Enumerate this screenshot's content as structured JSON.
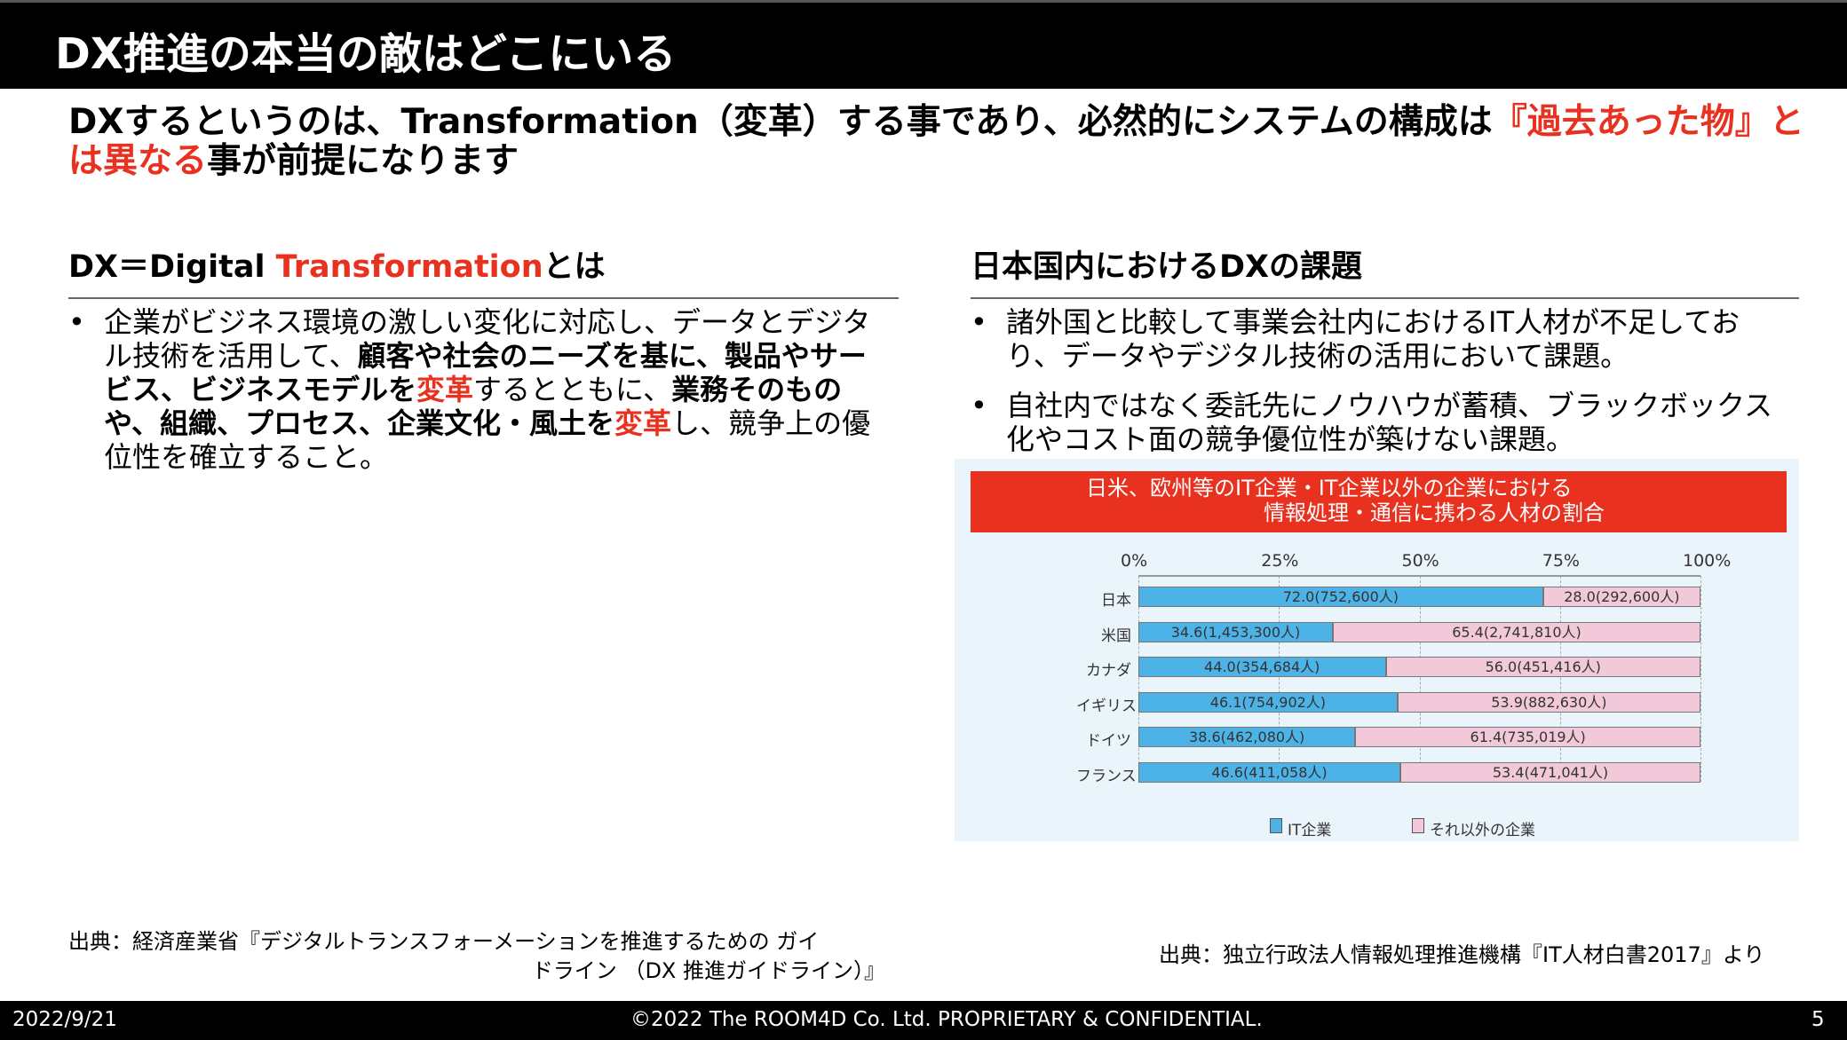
{
  "title": "DX推進の本当の敵はどこにいる",
  "headline": {
    "part1": "DXするというのは、Transformation（変革）する事であり、必然的にシステムの構成は",
    "red": "『過去あった物』とは異なる",
    "part2": "事が前提になります"
  },
  "left": {
    "heading_a": "DX＝Digital ",
    "heading_red": "Transformation",
    "heading_b": "とは",
    "bullet": {
      "t1": "企業がビジネス環境の激しい変化に対応し、データとデジタル技術を活用して、",
      "b1": "顧客や社会のニーズを基に、製品やサービス、ビジネスモデルを",
      "r1": "変革",
      "t2": "するとともに、",
      "b2": "業務そのものや、組織、プロセス、企業文化・風土を",
      "r2": "変革",
      "t3": "し、競争上の優位性を確立すること。"
    },
    "source_line1": "出典：経済産業省『デジタルトランスフォーメーションを推進するための ガイ",
    "source_line2": "ドライン （DX 推進ガイドライン）』"
  },
  "right": {
    "heading": "日本国内におけるDXの課題",
    "bullets": [
      "諸外国と比較して事業会社内におけるIT人材が不足しており、データやデジタル技術の活用において課題。",
      "自社内ではなく委託先にノウハウが蓄積、ブラックボックス化やコスト面の競争優位性が築けない課題。"
    ],
    "source": "出典：独立行政法人情報処理推進機構『IT人材白書2017』より"
  },
  "chart_data": {
    "type": "bar",
    "stacked": true,
    "orientation": "horizontal",
    "title_line1": "日米、欧州等のIT企業・IT企業以外の企業における",
    "title_line2": "情報処理・通信に携わる人材の割合",
    "categories": [
      "日本",
      "米国",
      "カナダ",
      "イギリス",
      "ドイツ",
      "フランス"
    ],
    "xticks": [
      "0%",
      "25%",
      "50%",
      "75%",
      "100%"
    ],
    "xlim": [
      0,
      100
    ],
    "series": [
      {
        "name": "IT企業",
        "color": "#4db3e6",
        "values": [
          72.0,
          34.6,
          44.0,
          46.1,
          38.6,
          46.6
        ],
        "labels": [
          "72.0(752,600人)",
          "34.6(1,453,300人)",
          "44.0(354,684人)",
          "46.1(754,902人)",
          "38.6(462,080人)",
          "46.6(411,058人)"
        ]
      },
      {
        "name": "それ以外の企業",
        "color": "#f2c9d8",
        "values": [
          28.0,
          65.4,
          56.0,
          53.9,
          61.4,
          53.4
        ],
        "labels": [
          "28.0(292,600人)",
          "65.4(2,741,810人)",
          "56.0(451,416人)",
          "53.9(882,630人)",
          "61.4(735,019人)",
          "53.4(471,041人)"
        ]
      }
    ],
    "legend": "bottom"
  },
  "footer": {
    "date": "2022/9/21",
    "copyright": "©2022 The ROOM4D Co. Ltd. PROPRIETARY & CONFIDENTIAL.",
    "page": "5"
  }
}
